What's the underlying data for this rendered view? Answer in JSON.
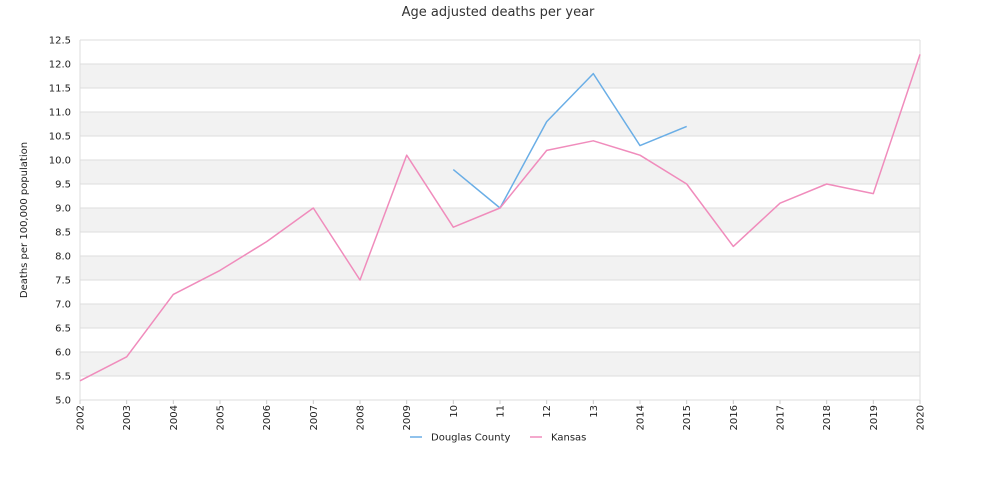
{
  "chart_data": {
    "type": "line",
    "title": "Age adjusted deaths per year",
    "xlabel": "",
    "ylabel": "Deaths per 100,000 population",
    "ylim": [
      5.0,
      12.5
    ],
    "ytick_step": 0.5,
    "x_ticks": [
      "2002",
      "2003",
      "2004",
      "2005",
      "2006",
      "2007",
      "2008",
      "2009",
      "10",
      "11",
      "12",
      "13",
      "2014",
      "2015",
      "2016",
      "2017",
      "2018",
      "2019",
      "2020"
    ],
    "x": [
      2002,
      2003,
      2004,
      2005,
      2006,
      2007,
      2008,
      2009,
      2010,
      2011,
      2012,
      2013,
      2014,
      2015,
      2016,
      2017,
      2018,
      2019,
      2020
    ],
    "grid": "horizontal banded",
    "legend_position": "bottom",
    "series": [
      {
        "name": "Douglas County",
        "color": "#6aaee6",
        "values": [
          null,
          null,
          null,
          null,
          null,
          null,
          null,
          null,
          9.8,
          9.0,
          10.8,
          11.8,
          10.3,
          10.7,
          null,
          null,
          null,
          null,
          null
        ]
      },
      {
        "name": "Kansas",
        "color": "#f08cbc",
        "values": [
          5.4,
          5.9,
          7.2,
          7.7,
          8.3,
          9.0,
          7.5,
          10.1,
          8.6,
          9.0,
          10.2,
          10.4,
          10.1,
          9.5,
          8.2,
          9.1,
          9.5,
          9.3,
          12.2
        ]
      }
    ]
  }
}
